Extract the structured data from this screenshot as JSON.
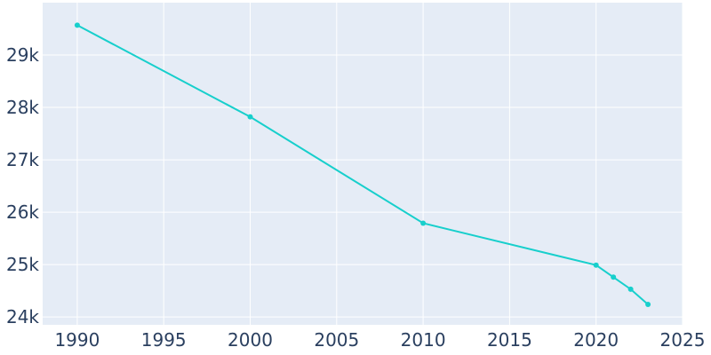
{
  "chart_data": {
    "type": "line",
    "title": "",
    "xlabel": "",
    "ylabel": "",
    "x": [
      1990,
      2000,
      2010,
      2020,
      2021,
      2022,
      2023
    ],
    "series": [
      {
        "values": [
          29570,
          27820,
          25790,
          24990,
          24760,
          24530,
          24240
        ]
      }
    ],
    "xlim": [
      1988,
      2025
    ],
    "ylim": [
      23850,
      30000
    ],
    "x_ticks": [
      1990,
      1995,
      2000,
      2005,
      2010,
      2015,
      2020,
      2025
    ],
    "x_tick_labels": [
      "1990",
      "1995",
      "2000",
      "2005",
      "2010",
      "2015",
      "2020",
      "2025"
    ],
    "y_ticks": [
      24000,
      25000,
      26000,
      27000,
      28000,
      29000
    ],
    "y_tick_labels": [
      "24k",
      "25k",
      "26k",
      "27k",
      "28k",
      "29k"
    ],
    "grid": true,
    "legend": "none",
    "colors": {
      "plot_background": "#e5ecf6",
      "grid": "#ffffff",
      "line": "#17cfcc",
      "tick_text": "#2a3f5f"
    }
  }
}
